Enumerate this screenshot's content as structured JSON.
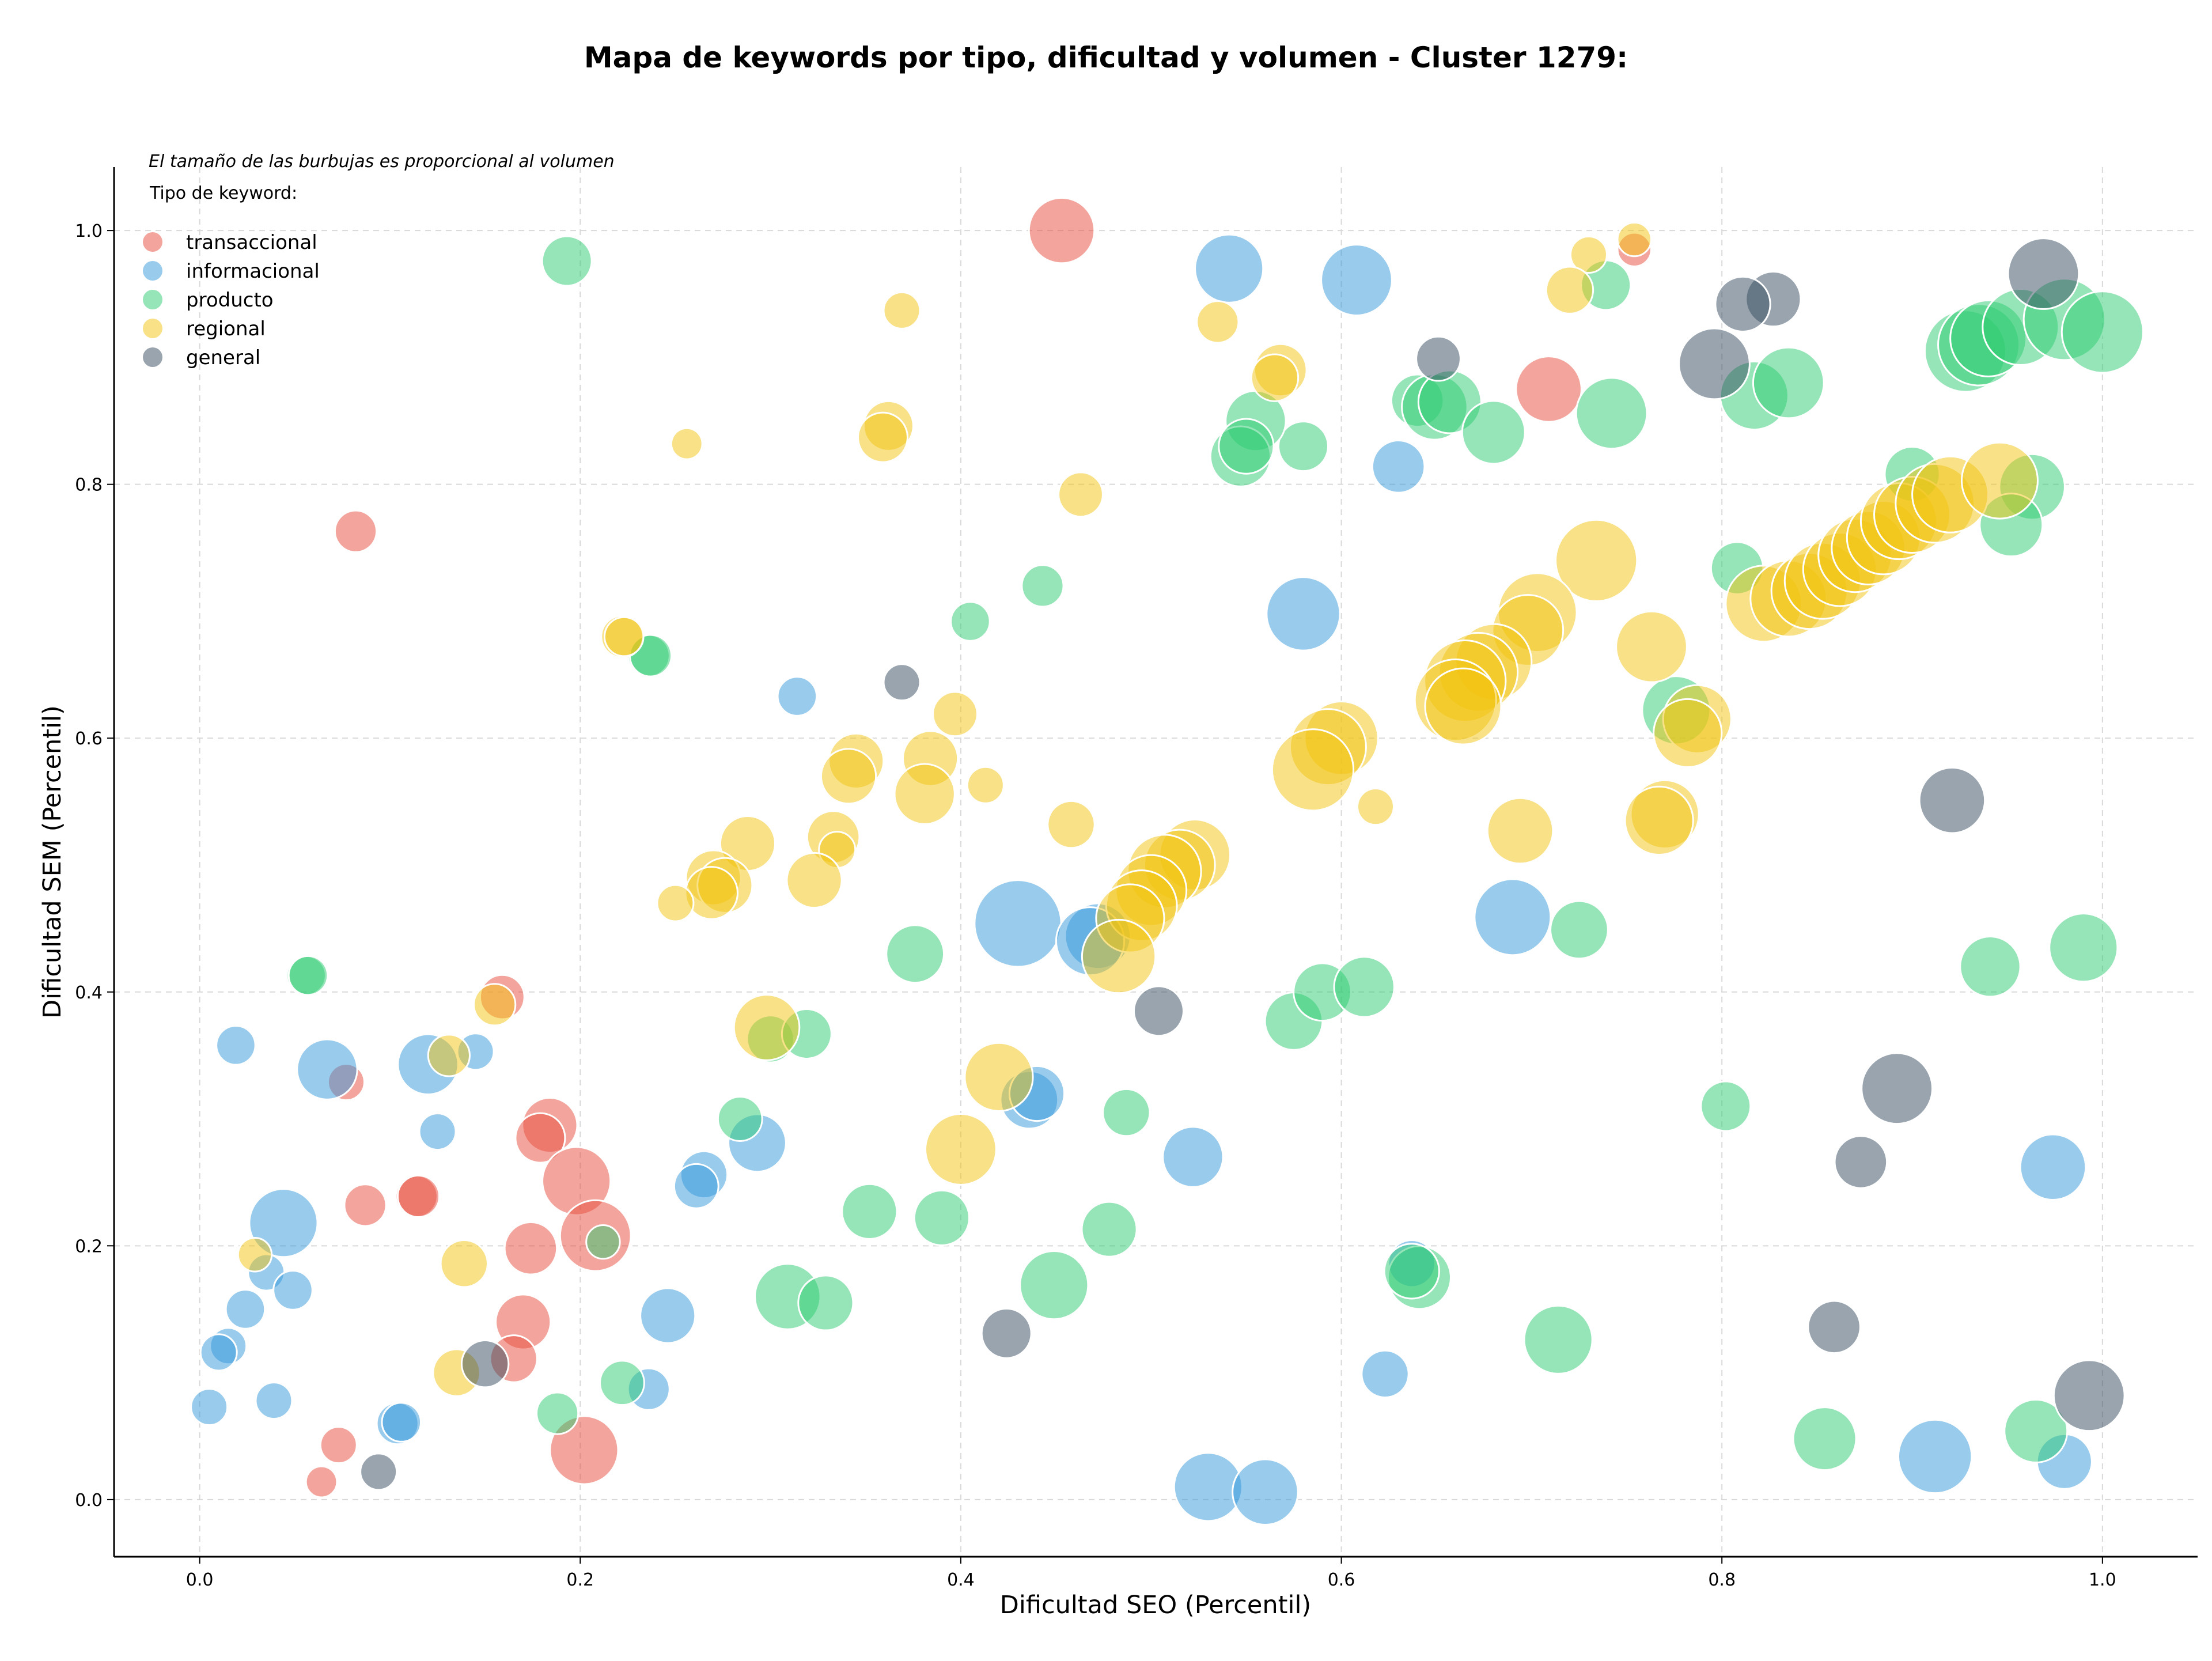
{
  "chart_data": {
    "type": "scatter",
    "title": "Mapa de keywords por tipo, dificultad y volumen - Cluster 1279:",
    "xlabel": "Dificultad SEO (Percentil)",
    "ylabel": "Dificultad SEM (Percentil)",
    "xlim": [
      -0.045,
      1.05
    ],
    "ylim": [
      -0.045,
      1.05
    ],
    "xticks": [
      0.0,
      0.2,
      0.4,
      0.6,
      0.8,
      1.0
    ],
    "yticks": [
      0.0,
      0.2,
      0.4,
      0.6,
      0.8,
      1.0
    ],
    "tick_labels_x": [
      "0.0",
      "0.2",
      "0.4",
      "0.6",
      "0.8",
      "1.0"
    ],
    "tick_labels_y": [
      "0.0",
      "0.2",
      "0.4",
      "0.6",
      "0.8",
      "1.0"
    ],
    "grid": true,
    "size_note": "El tamaño de las burbujas es proporcional al volumen",
    "legend_title": "Tipo de keyword:",
    "legend_position": "top-left",
    "series": [
      {
        "name": "transaccional",
        "color": "#e74c3c",
        "points": [
          [
            0.453,
            1.0,
            0.8
          ],
          [
            0.754,
            0.985,
            0.2
          ],
          [
            0.709,
            0.875,
            0.8
          ],
          [
            0.082,
            0.763,
            0.35
          ],
          [
            0.159,
            0.396,
            0.4
          ],
          [
            0.077,
            0.329,
            0.25
          ],
          [
            0.184,
            0.295,
            0.6
          ],
          [
            0.179,
            0.285,
            0.5
          ],
          [
            0.198,
            0.251,
            0.85
          ],
          [
            0.087,
            0.232,
            0.35
          ],
          [
            0.114,
            0.239,
            0.35
          ],
          [
            0.115,
            0.239,
            0.35
          ],
          [
            0.208,
            0.208,
            0.9
          ],
          [
            0.174,
            0.198,
            0.55
          ],
          [
            0.17,
            0.14,
            0.6
          ],
          [
            0.165,
            0.111,
            0.45
          ],
          [
            0.202,
            0.039,
            0.85
          ],
          [
            0.073,
            0.043,
            0.25
          ],
          [
            0.064,
            0.014,
            0.15
          ]
        ]
      },
      {
        "name": "informacional",
        "color": "#3498db",
        "points": [
          [
            0.541,
            0.97,
            0.85
          ],
          [
            0.608,
            0.961,
            0.9
          ],
          [
            0.63,
            0.814,
            0.55
          ],
          [
            0.58,
            0.698,
            0.95
          ],
          [
            0.314,
            0.633,
            0.3
          ],
          [
            0.43,
            0.454,
            1.2
          ],
          [
            0.472,
            0.444,
            0.8
          ],
          [
            0.468,
            0.44,
            0.85
          ],
          [
            0.69,
            0.459,
            1.0
          ],
          [
            0.019,
            0.358,
            0.3
          ],
          [
            0.067,
            0.339,
            0.7
          ],
          [
            0.12,
            0.343,
            0.7
          ],
          [
            0.145,
            0.353,
            0.25
          ],
          [
            0.125,
            0.29,
            0.25
          ],
          [
            0.436,
            0.315,
            0.65
          ],
          [
            0.44,
            0.32,
            0.6
          ],
          [
            0.293,
            0.281,
            0.65
          ],
          [
            0.265,
            0.256,
            0.45
          ],
          [
            0.261,
            0.247,
            0.4
          ],
          [
            0.522,
            0.27,
            0.7
          ],
          [
            0.044,
            0.218,
            0.85
          ],
          [
            0.035,
            0.179,
            0.25
          ],
          [
            0.049,
            0.165,
            0.3
          ],
          [
            0.024,
            0.15,
            0.3
          ],
          [
            0.015,
            0.121,
            0.25
          ],
          [
            0.01,
            0.116,
            0.25
          ],
          [
            0.246,
            0.145,
            0.6
          ],
          [
            0.005,
            0.073,
            0.25
          ],
          [
            0.039,
            0.078,
            0.25
          ],
          [
            0.236,
            0.087,
            0.35
          ],
          [
            0.104,
            0.06,
            0.35
          ],
          [
            0.106,
            0.061,
            0.3
          ],
          [
            0.637,
            0.186,
            0.45
          ],
          [
            0.623,
            0.099,
            0.45
          ],
          [
            0.974,
            0.262,
            0.8
          ],
          [
            0.53,
            0.01,
            0.85
          ],
          [
            0.56,
            0.006,
            0.8
          ],
          [
            0.912,
            0.034,
            0.95
          ],
          [
            0.98,
            0.03,
            0.6
          ]
        ]
      },
      {
        "name": "producto",
        "color": "#2ecc71",
        "points": [
          [
            0.193,
            0.976,
            0.5
          ],
          [
            0.739,
            0.957,
            0.5
          ],
          [
            0.64,
            0.866,
            0.55
          ],
          [
            0.58,
            0.83,
            0.5
          ],
          [
            0.555,
            0.85,
            0.7
          ],
          [
            0.547,
            0.822,
            0.7
          ],
          [
            0.55,
            0.83,
            0.6
          ],
          [
            0.649,
            0.861,
            0.8
          ],
          [
            0.657,
            0.865,
            0.75
          ],
          [
            0.68,
            0.841,
            0.75
          ],
          [
            0.742,
            0.856,
            0.9
          ],
          [
            0.817,
            0.87,
            0.85
          ],
          [
            0.835,
            0.88,
            0.9
          ],
          [
            0.928,
            0.905,
            1.1
          ],
          [
            0.935,
            0.91,
            1.1
          ],
          [
            0.94,
            0.915,
            1.0
          ],
          [
            0.957,
            0.924,
            1.0
          ],
          [
            0.98,
            0.93,
            1.1
          ],
          [
            1.0,
            0.92,
            1.1
          ],
          [
            0.808,
            0.734,
            0.55
          ],
          [
            0.9,
            0.808,
            0.6
          ],
          [
            0.963,
            0.798,
            0.8
          ],
          [
            0.952,
            0.768,
            0.75
          ],
          [
            0.443,
            0.72,
            0.35
          ],
          [
            0.405,
            0.692,
            0.3
          ],
          [
            0.236,
            0.665,
            0.35
          ],
          [
            0.237,
            0.665,
            0.35
          ],
          [
            0.056,
            0.413,
            0.3
          ],
          [
            0.057,
            0.413,
            0.3
          ],
          [
            0.376,
            0.43,
            0.65
          ],
          [
            0.3,
            0.363,
            0.45
          ],
          [
            0.319,
            0.367,
            0.5
          ],
          [
            0.575,
            0.377,
            0.65
          ],
          [
            0.59,
            0.4,
            0.65
          ],
          [
            0.612,
            0.404,
            0.7
          ],
          [
            0.776,
            0.622,
            0.85
          ],
          [
            0.725,
            0.449,
            0.65
          ],
          [
            0.99,
            0.435,
            0.85
          ],
          [
            0.941,
            0.42,
            0.7
          ],
          [
            0.284,
            0.3,
            0.4
          ],
          [
            0.487,
            0.305,
            0.45
          ],
          [
            0.802,
            0.31,
            0.5
          ],
          [
            0.352,
            0.227,
            0.6
          ],
          [
            0.39,
            0.222,
            0.6
          ],
          [
            0.478,
            0.213,
            0.6
          ],
          [
            0.212,
            0.203,
            0.2
          ],
          [
            0.309,
            0.16,
            0.8
          ],
          [
            0.329,
            0.155,
            0.6
          ],
          [
            0.449,
            0.169,
            0.85
          ],
          [
            0.641,
            0.175,
            0.75
          ],
          [
            0.637,
            0.18,
            0.6
          ],
          [
            0.714,
            0.126,
            0.85
          ],
          [
            0.188,
            0.068,
            0.35
          ],
          [
            0.222,
            0.092,
            0.4
          ],
          [
            0.854,
            0.048,
            0.75
          ],
          [
            0.965,
            0.054,
            0.75
          ]
        ]
      },
      {
        "name": "regional",
        "color": "#f1c40f",
        "points": [
          [
            0.754,
            0.993,
            0.2
          ],
          [
            0.73,
            0.981,
            0.25
          ],
          [
            0.72,
            0.953,
            0.45
          ],
          [
            0.369,
            0.937,
            0.25
          ],
          [
            0.535,
            0.928,
            0.35
          ],
          [
            0.568,
            0.89,
            0.55
          ],
          [
            0.565,
            0.884,
            0.45
          ],
          [
            0.256,
            0.832,
            0.15
          ],
          [
            0.362,
            0.846,
            0.5
          ],
          [
            0.359,
            0.837,
            0.5
          ],
          [
            0.463,
            0.792,
            0.4
          ],
          [
            0.734,
            0.74,
            1.1
          ],
          [
            0.822,
            0.706,
            1.0
          ],
          [
            0.835,
            0.71,
            1.0
          ],
          [
            0.846,
            0.716,
            1.0
          ],
          [
            0.853,
            0.724,
            1.0
          ],
          [
            0.862,
            0.733,
            0.95
          ],
          [
            0.87,
            0.744,
            0.95
          ],
          [
            0.877,
            0.75,
            0.95
          ],
          [
            0.885,
            0.758,
            0.95
          ],
          [
            0.893,
            0.771,
            1.0
          ],
          [
            0.9,
            0.776,
            1.0
          ],
          [
            0.912,
            0.785,
            1.05
          ],
          [
            0.92,
            0.792,
            1.0
          ],
          [
            0.946,
            0.803,
            1.0
          ],
          [
            0.763,
            0.672,
            0.9
          ],
          [
            0.703,
            0.699,
            1.05
          ],
          [
            0.698,
            0.685,
            0.9
          ],
          [
            0.68,
            0.66,
            1.0
          ],
          [
            0.672,
            0.652,
            1.05
          ],
          [
            0.665,
            0.645,
            1.1
          ],
          [
            0.66,
            0.63,
            1.1
          ],
          [
            0.664,
            0.625,
            1.0
          ],
          [
            0.222,
            0.68,
            0.35
          ],
          [
            0.223,
            0.68,
            0.3
          ],
          [
            0.397,
            0.619,
            0.4
          ],
          [
            0.787,
            0.615,
            0.85
          ],
          [
            0.782,
            0.604,
            0.85
          ],
          [
            0.6,
            0.6,
            0.95
          ],
          [
            0.593,
            0.593,
            1.0
          ],
          [
            0.585,
            0.575,
            1.1
          ],
          [
            0.345,
            0.582,
            0.6
          ],
          [
            0.341,
            0.57,
            0.6
          ],
          [
            0.384,
            0.584,
            0.6
          ],
          [
            0.381,
            0.556,
            0.7
          ],
          [
            0.413,
            0.563,
            0.25
          ],
          [
            0.618,
            0.546,
            0.25
          ],
          [
            0.458,
            0.532,
            0.45
          ],
          [
            0.77,
            0.54,
            0.85
          ],
          [
            0.767,
            0.535,
            0.85
          ],
          [
            0.333,
            0.522,
            0.55
          ],
          [
            0.335,
            0.512,
            0.25
          ],
          [
            0.288,
            0.517,
            0.6
          ],
          [
            0.323,
            0.488,
            0.6
          ],
          [
            0.27,
            0.49,
            0.6
          ],
          [
            0.276,
            0.484,
            0.6
          ],
          [
            0.269,
            0.478,
            0.55
          ],
          [
            0.25,
            0.47,
            0.25
          ],
          [
            0.523,
            0.508,
            0.9
          ],
          [
            0.515,
            0.5,
            0.9
          ],
          [
            0.507,
            0.495,
            0.95
          ],
          [
            0.5,
            0.48,
            0.9
          ],
          [
            0.495,
            0.468,
            0.9
          ],
          [
            0.489,
            0.458,
            0.85
          ],
          [
            0.483,
            0.428,
            0.95
          ],
          [
            0.694,
            0.527,
            0.8
          ],
          [
            0.298,
            0.372,
            0.8
          ],
          [
            0.155,
            0.39,
            0.35
          ],
          [
            0.131,
            0.35,
            0.35
          ],
          [
            0.42,
            0.333,
            0.85
          ],
          [
            0.4,
            0.276,
            0.9
          ],
          [
            0.139,
            0.186,
            0.45
          ],
          [
            0.029,
            0.193,
            0.2
          ],
          [
            0.135,
            0.1,
            0.45
          ]
        ]
      },
      {
        "name": "general",
        "color": "#34495e",
        "points": [
          [
            0.969,
            0.966,
            0.9
          ],
          [
            0.827,
            0.946,
            0.6
          ],
          [
            0.811,
            0.942,
            0.6
          ],
          [
            0.796,
            0.895,
            0.9
          ],
          [
            0.651,
            0.899,
            0.4
          ],
          [
            0.369,
            0.644,
            0.25
          ],
          [
            0.921,
            0.551,
            0.8
          ],
          [
            0.504,
            0.385,
            0.5
          ],
          [
            0.892,
            0.324,
            0.9
          ],
          [
            0.873,
            0.266,
            0.55
          ],
          [
            0.424,
            0.131,
            0.5
          ],
          [
            0.15,
            0.107,
            0.45
          ],
          [
            0.094,
            0.022,
            0.25
          ],
          [
            0.859,
            0.136,
            0.55
          ],
          [
            0.993,
            0.082,
            0.9
          ]
        ]
      }
    ]
  }
}
